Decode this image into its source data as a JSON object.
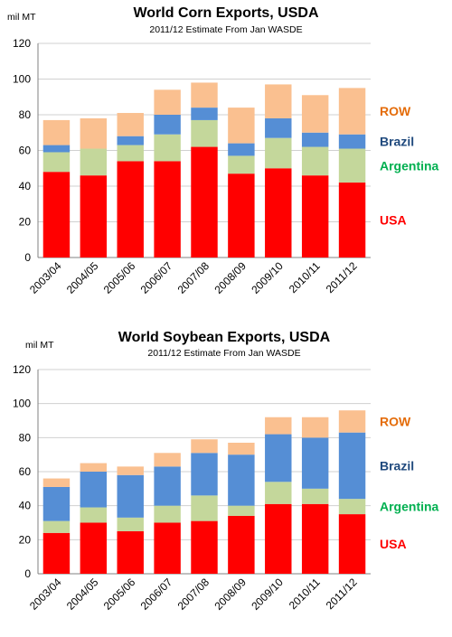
{
  "chart_data": [
    {
      "type": "bar",
      "stacked": true,
      "title": "World Corn Exports, USDA",
      "subtitle": "2011/12 Estimate From Jan WASDE",
      "ylabel": "mil MT",
      "ylim": [
        0,
        120
      ],
      "yticks": [
        0,
        20,
        40,
        60,
        80,
        100,
        120
      ],
      "categories": [
        "2003/04",
        "2004/05",
        "2005/06",
        "2006/07",
        "2007/08",
        "2008/09",
        "2009/10",
        "2010/11",
        "2011/12"
      ],
      "series": [
        {
          "name": "USA",
          "color": "#ff0000",
          "values": [
            48,
            46,
            54,
            54,
            62,
            47,
            50,
            46,
            42
          ]
        },
        {
          "name": "Argentina",
          "color": "#c4d79b",
          "values": [
            11,
            15,
            9,
            15,
            15,
            10,
            17,
            16,
            19
          ]
        },
        {
          "name": "Brazil",
          "color": "#558ed5",
          "values": [
            4,
            0,
            5,
            11,
            7,
            7,
            11,
            8,
            8
          ]
        },
        {
          "name": "ROW",
          "color": "#fac090",
          "values": [
            14,
            17,
            13,
            14,
            14,
            20,
            19,
            21,
            26
          ]
        }
      ],
      "legend_colors": {
        "ROW": "#e46c0a",
        "Brazil": "#1f497d",
        "Argentina": "#00b050",
        "USA": "#ff0000"
      },
      "legend_position": "right",
      "grid": true
    },
    {
      "type": "bar",
      "stacked": true,
      "title": "World Soybean Exports, USDA",
      "subtitle": "2011/12 Estimate From Jan WASDE",
      "ylabel": "mil MT",
      "ylim": [
        0,
        120
      ],
      "yticks": [
        0,
        20,
        40,
        60,
        80,
        100,
        120
      ],
      "categories": [
        "2003/04",
        "2004/05",
        "2005/06",
        "2006/07",
        "2007/08",
        "2008/09",
        "2009/10",
        "2010/11",
        "2011/12"
      ],
      "series": [
        {
          "name": "USA",
          "color": "#ff0000",
          "values": [
            24,
            30,
            25,
            30,
            31,
            34,
            41,
            41,
            35
          ]
        },
        {
          "name": "Argentina",
          "color": "#c4d79b",
          "values": [
            7,
            9,
            8,
            10,
            15,
            6,
            13,
            9,
            9
          ]
        },
        {
          "name": "Brazil",
          "color": "#558ed5",
          "values": [
            20,
            21,
            25,
            23,
            25,
            30,
            28,
            30,
            39
          ]
        },
        {
          "name": "ROW",
          "color": "#fac090",
          "values": [
            5,
            5,
            5,
            8,
            8,
            7,
            10,
            12,
            13
          ]
        }
      ],
      "legend_colors": {
        "ROW": "#e46c0a",
        "Brazil": "#1f497d",
        "Argentina": "#00b050",
        "USA": "#ff0000"
      },
      "legend_position": "right",
      "grid": true
    }
  ]
}
